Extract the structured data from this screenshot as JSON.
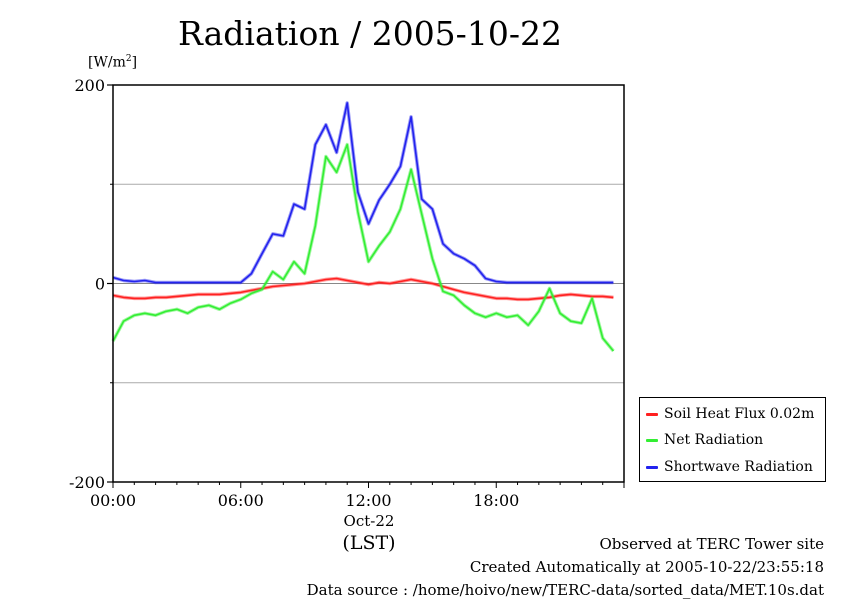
{
  "title": "Radiation / 2005-10-22",
  "unit_prefix": "[W/m",
  "unit_sup": "2",
  "unit_suffix": "]",
  "x_sublabel": "Oct-22",
  "x_zone": "(LST)",
  "footer": {
    "line1": "Observed at TERC Tower site",
    "line2": "Created Automatically at 2005-10-22/23:55:18",
    "line3": "Data source : /home/hoivo/new/TERC-data/sorted_data/MET.10s.dat"
  },
  "colors": {
    "soil": "#ff2020",
    "net": "#33ee33",
    "shortwave": "#2222ee",
    "grid": "#aaaaaa",
    "axis": "#000000"
  },
  "chart_data": {
    "type": "line",
    "title": "Radiation / 2005-10-22",
    "ylabel": "[W/m2]",
    "xlabel": "Oct-22 (LST)",
    "xlim": [
      0,
      24
    ],
    "ylim": [
      -200,
      200
    ],
    "yticks": [
      -200,
      0,
      200
    ],
    "ytick_labels": [
      "-200",
      "0",
      "200"
    ],
    "ygrid": [
      -100,
      100
    ],
    "xticks": [
      0,
      6,
      12,
      18
    ],
    "xtick_labels": [
      "00:00",
      "06:00",
      "12:00",
      "18:00"
    ],
    "grid": true,
    "legend_position": "right, lower",
    "x": [
      0,
      0.5,
      1,
      1.5,
      2,
      2.5,
      3,
      3.5,
      4,
      4.5,
      5,
      5.5,
      6,
      6.5,
      7,
      7.5,
      8,
      8.5,
      9,
      9.5,
      10,
      10.5,
      11,
      11.5,
      12,
      12.5,
      13,
      13.5,
      14,
      14.5,
      15,
      15.5,
      16,
      16.5,
      17,
      17.5,
      18,
      18.5,
      19,
      19.5,
      20,
      20.5,
      21,
      21.5,
      22,
      22.5,
      23,
      23.5
    ],
    "series": [
      {
        "name": "Soil Heat Flux 0.02m",
        "color": "#ff2020",
        "values": [
          -12,
          -14,
          -15,
          -15,
          -14,
          -14,
          -13,
          -12,
          -11,
          -11,
          -11,
          -10,
          -9,
          -7,
          -5,
          -3,
          -2,
          -1,
          0,
          2,
          4,
          5,
          3,
          1,
          -1,
          1,
          0,
          2,
          4,
          2,
          0,
          -3,
          -6,
          -9,
          -11,
          -13,
          -15,
          -15,
          -16,
          -16,
          -15,
          -14,
          -12,
          -11,
          -12,
          -13,
          -13,
          -14
        ]
      },
      {
        "name": "Net Radiation",
        "color": "#33ee33",
        "values": [
          -58,
          -38,
          -32,
          -30,
          -32,
          -28,
          -26,
          -30,
          -24,
          -22,
          -26,
          -20,
          -16,
          -10,
          -6,
          12,
          4,
          22,
          10,
          58,
          128,
          112,
          140,
          72,
          22,
          38,
          52,
          75,
          115,
          70,
          25,
          -8,
          -12,
          -22,
          -30,
          -34,
          -30,
          -34,
          -32,
          -42,
          -28,
          -5,
          -30,
          -38,
          -40,
          -15,
          -55,
          -68
        ]
      },
      {
        "name": "Shortwave Radiation",
        "color": "#2222ee",
        "values": [
          6,
          3,
          2,
          3,
          1,
          1,
          1,
          1,
          1,
          1,
          1,
          1,
          1,
          10,
          30,
          50,
          48,
          80,
          75,
          140,
          160,
          132,
          182,
          92,
          60,
          84,
          100,
          118,
          168,
          85,
          75,
          40,
          30,
          25,
          18,
          5,
          2,
          1,
          1,
          1,
          1,
          1,
          1,
          1,
          1,
          1,
          1,
          1
        ]
      }
    ]
  }
}
